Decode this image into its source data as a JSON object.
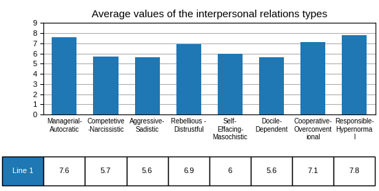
{
  "chart_data": {
    "type": "bar",
    "title": "Average values of the interpersonal relations types",
    "categories": [
      "Managerial-\nAutocratic",
      "Competetive\n-Narcissistic",
      "Aggressive-\nSadistic",
      "Rebellious -\nDistrustful",
      "Self-\nEffacing-\nMasochistic",
      "Docile-\nDependent",
      "Cooperative-\nOverconvent\nional",
      "Responsible-\nHypernorma\nl"
    ],
    "series": [
      {
        "name": "Line 1",
        "values": [
          7.6,
          5.7,
          5.6,
          6.9,
          6.0,
          5.6,
          7.1,
          7.8
        ],
        "value_labels": [
          "7.6",
          "5.7",
          "5.6",
          "6.9",
          "6",
          "5.6",
          "7.1",
          "7.8"
        ]
      }
    ],
    "ylim": [
      0,
      9
    ],
    "yticks": [
      0,
      1,
      2,
      3,
      4,
      5,
      6,
      7,
      8,
      9
    ],
    "grid": true
  }
}
